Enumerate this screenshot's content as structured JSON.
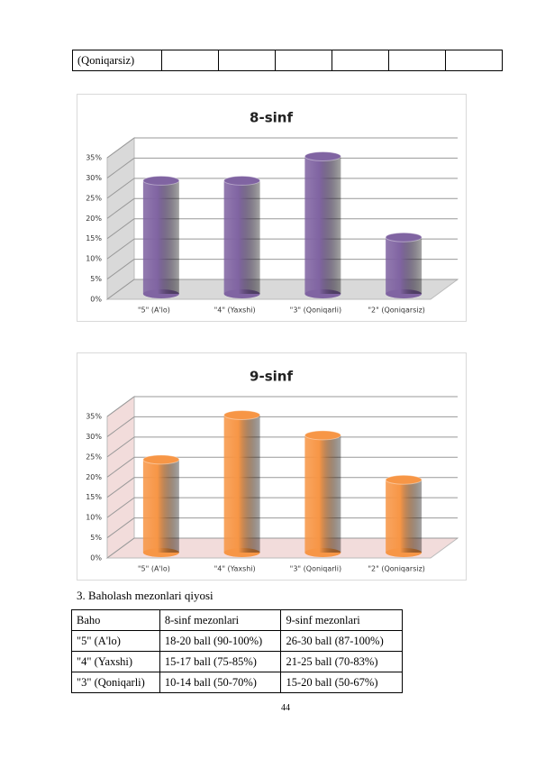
{
  "top_table": {
    "rows": [
      [
        "(Qoniqarsiz)"
      ]
    ]
  },
  "chart_data": [
    {
      "type": "bar3d",
      "title": "8-sinf",
      "categories": [
        "\"5\" (A'lo)",
        "\"4\" (Yaxshi)",
        "\"3\" (Qoniqarli)",
        "\"2\" (Qoniqarsiz)"
      ],
      "values": [
        28,
        28,
        34,
        14
      ],
      "color": "#8064a2",
      "wall_color": "#d9d9d9",
      "ylim": [
        0,
        35
      ],
      "yticks": [
        {
          "value": 0,
          "label": "0%"
        },
        {
          "value": 5,
          "label": "5%"
        },
        {
          "value": 10,
          "label": "10%"
        },
        {
          "value": 15,
          "label": "15%"
        },
        {
          "value": 20,
          "label": "20%"
        },
        {
          "value": 25,
          "label": "25%"
        },
        {
          "value": 30,
          "label": "30%"
        },
        {
          "value": 35,
          "label": "35%"
        }
      ],
      "grid": true
    },
    {
      "type": "bar3d",
      "title": "9-sinf",
      "categories": [
        "\"5\" (A'lo)",
        "\"4\" (Yaxshi)",
        "\"3\" (Qoniqarli)",
        "\"2\" (Qoniqarsiz)"
      ],
      "values": [
        23,
        34,
        29,
        18
      ],
      "color": "#f79646",
      "wall_color": "#f2dcdb",
      "ylim": [
        0,
        35
      ],
      "yticks": [
        {
          "value": 0,
          "label": "0%"
        },
        {
          "value": 5,
          "label": "5%"
        },
        {
          "value": 10,
          "label": "10%"
        },
        {
          "value": 15,
          "label": "15%"
        },
        {
          "value": 20,
          "label": "20%"
        },
        {
          "value": 25,
          "label": "25%"
        },
        {
          "value": 30,
          "label": "30%"
        },
        {
          "value": 35,
          "label": "35%"
        }
      ],
      "grid": true
    }
  ],
  "section": {
    "heading": "3. Baholash mezonlari qiyosi"
  },
  "table": {
    "header": [
      "Baho",
      "8-sinf mezonlari",
      "9-sinf mezonlari"
    ],
    "rows": [
      [
        "\"5\" (A'lo)",
        "18-20 ball (90-100%)",
        "26-30 ball (87-100%)"
      ],
      [
        "\"4\" (Yaxshi)",
        "15-17 ball (75-85%)",
        "21-25 ball (70-83%)"
      ],
      [
        "\"3\" (Qoniqarli)",
        "10-14 ball (50-70%)",
        "15-20 ball (50-67%)"
      ]
    ]
  },
  "page_number": "44"
}
